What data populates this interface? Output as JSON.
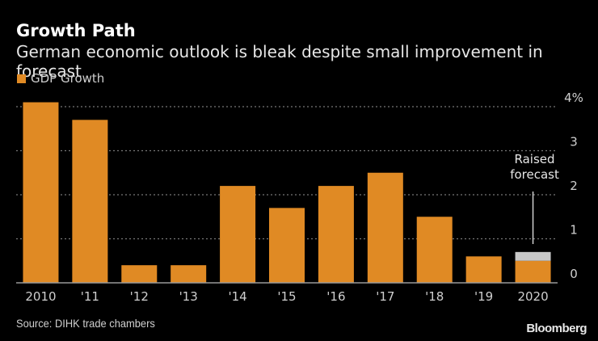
{
  "chart_data": {
    "type": "bar",
    "title": "Growth Path",
    "subtitle": "German economic outlook is bleak despite small improvement in forecast",
    "categories": [
      "2010",
      "'11",
      "'12",
      "'13",
      "'14",
      "'15",
      "'16",
      "'17",
      "'18",
      "'19",
      "2020"
    ],
    "series": [
      {
        "name": "GDP Growth",
        "color": "#e08a24",
        "values": [
          4.1,
          3.7,
          0.4,
          0.4,
          2.2,
          1.7,
          2.2,
          2.5,
          1.5,
          0.6,
          0.5
        ]
      },
      {
        "name": "Raised forecast",
        "color": "#c8c8c8",
        "values": [
          0,
          0,
          0,
          0,
          0,
          0,
          0,
          0,
          0,
          0,
          0.2
        ]
      }
    ],
    "xlabel": "",
    "ylabel": "",
    "ylim": [
      0,
      4
    ],
    "yticks": [
      0,
      1,
      2,
      3,
      4
    ],
    "ytick_labels": [
      "0",
      "1",
      "2",
      "3",
      "4%"
    ],
    "grid": true,
    "legend": "top-left",
    "annotations": [
      {
        "text_lines": [
          "Raised",
          "forecast"
        ],
        "category": "2020"
      }
    ]
  },
  "legend_label": "GDP Growth",
  "source": "Source: DIHK trade chambers",
  "brand": "Bloomberg"
}
